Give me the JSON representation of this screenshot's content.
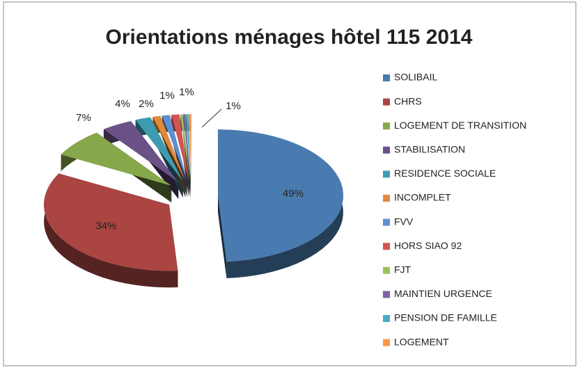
{
  "chart_data": {
    "type": "pie",
    "title": "Orientations ménages hôtel 115 2014",
    "categories": [
      "SOLIBAIL",
      "CHRS",
      "LOGEMENT DE TRANSITION",
      "STABILISATION",
      "RESIDENCE SOCIALE",
      "INCOMPLET",
      "FVV",
      "HORS SIAO 92",
      "FJT",
      "MAINTIEN URGENCE",
      "PENSION DE FAMILLE",
      "LOGEMENT"
    ],
    "values": [
      49,
      34,
      7,
      4,
      2,
      1,
      1,
      1,
      0.3,
      0.3,
      0.3,
      0.3
    ],
    "value_labels": [
      "49%",
      "34%",
      "7%",
      "4%",
      "2%",
      "1%",
      "1%",
      "1%",
      null,
      null,
      null,
      null
    ],
    "colors": [
      "#4a7bb0",
      "#aa4542",
      "#86a74a",
      "#6a5186",
      "#3e9bb0",
      "#e08a3a",
      "#5f8fd0",
      "#d25450",
      "#9bc25d",
      "#8064a2",
      "#4bacc6",
      "#f79646"
    ],
    "legend": "right"
  }
}
